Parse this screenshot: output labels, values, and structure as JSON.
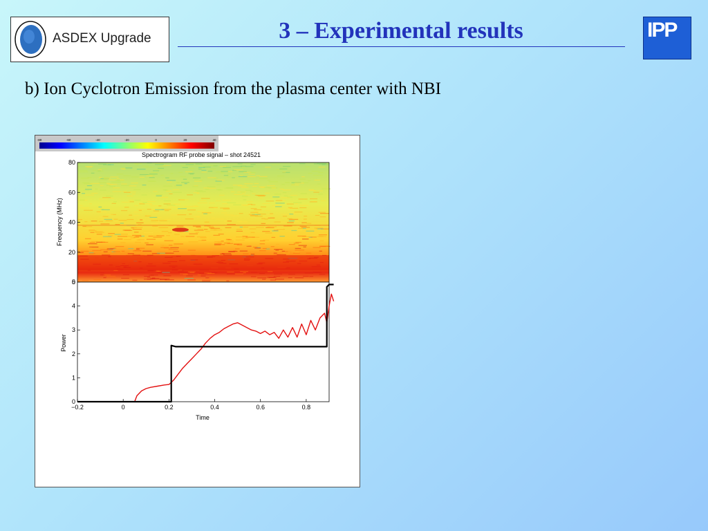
{
  "header": {
    "logo_text": "ASDEX Upgrade",
    "title": "3 – Experimental results",
    "ipp_logo": "IPP"
  },
  "subtitle": "b) Ion Cyclotron Emission from the plasma center with NBI",
  "colors": {
    "title": "#2233bb",
    "red_series": "#e31010",
    "black_series": "#000000"
  },
  "chart_data": [
    {
      "type": "heatmap",
      "title": "Spectrogram RF probe signal – shot 24521",
      "xlabel": "",
      "ylabel": "Frequency (MHz)",
      "ylim": [
        0,
        80
      ],
      "yticks": [
        "0",
        "20",
        "40",
        "60",
        "80"
      ],
      "colorbar": {
        "min": -80,
        "max": 40,
        "ticks": [
          "-80",
          "-60",
          "-40",
          "-20",
          "0",
          "20",
          "40"
        ]
      },
      "features": [
        {
          "kind": "band",
          "freq_range": [
            8,
            18
          ],
          "level": 30
        },
        {
          "kind": "line",
          "freq": 38,
          "level": 10
        },
        {
          "kind": "spot",
          "freq": 35,
          "time": 0.25,
          "level": 25
        }
      ]
    },
    {
      "type": "line",
      "title": "",
      "xlabel": "Time",
      "ylabel": "Power",
      "xlim": [
        -0.2,
        0.9
      ],
      "ylim": [
        0,
        5
      ],
      "xticks": [
        "-0.2",
        "0",
        "0.2",
        "0.4",
        "0.6",
        "0.8"
      ],
      "yticks": [
        "0",
        "1",
        "2",
        "3",
        "4",
        "5"
      ],
      "series": [
        {
          "color": "#e31010",
          "x": [
            0.05,
            0.06,
            0.08,
            0.1,
            0.12,
            0.15,
            0.18,
            0.2,
            0.22,
            0.24,
            0.26,
            0.28,
            0.3,
            0.32,
            0.34,
            0.36,
            0.38,
            0.4,
            0.42,
            0.44,
            0.46,
            0.48,
            0.5,
            0.52,
            0.54,
            0.56,
            0.58,
            0.6,
            0.62,
            0.64,
            0.66,
            0.68,
            0.7,
            0.72,
            0.74,
            0.76,
            0.78,
            0.8,
            0.82,
            0.84,
            0.86,
            0.88,
            0.89,
            0.9,
            0.91,
            0.92
          ],
          "y": [
            0.0,
            0.25,
            0.45,
            0.55,
            0.6,
            0.65,
            0.7,
            0.72,
            0.9,
            1.15,
            1.4,
            1.6,
            1.8,
            2.0,
            2.2,
            2.45,
            2.65,
            2.8,
            2.9,
            3.05,
            3.15,
            3.25,
            3.3,
            3.2,
            3.1,
            3.0,
            2.95,
            2.85,
            2.95,
            2.8,
            2.9,
            2.65,
            3.0,
            2.7,
            3.1,
            2.7,
            3.25,
            2.8,
            3.4,
            3.0,
            3.5,
            3.7,
            3.3,
            4.0,
            4.5,
            4.2
          ]
        },
        {
          "color": "#000000",
          "x": [
            -0.2,
            0.21,
            0.21,
            0.23,
            0.25,
            0.89,
            0.89,
            0.9,
            0.92
          ],
          "y": [
            0,
            0,
            2.35,
            2.3,
            2.3,
            2.3,
            4.8,
            4.9,
            4.9
          ]
        }
      ]
    }
  ]
}
